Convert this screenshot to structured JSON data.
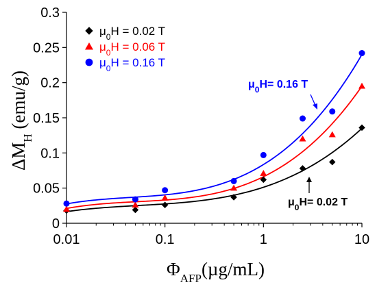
{
  "chart_data": {
    "type": "scatter",
    "x_scale": "log",
    "xlim": [
      0.01,
      10
    ],
    "ylim": [
      0,
      0.3
    ],
    "x_ticks": [
      "0.01",
      "0.1",
      "1",
      "10"
    ],
    "y_ticks": [
      "0",
      "0.05",
      "0.1",
      "0.15",
      "0.2",
      "0.25",
      "0.3"
    ],
    "xlabel": {
      "main": "Φ",
      "sub": "AFP",
      "rest": "(µg/mL)"
    },
    "ylabel": {
      "main": "ΔM",
      "sub": "H",
      "rest": " (emu/g)"
    },
    "legend_position": "top-left",
    "series": [
      {
        "name": "μ0H = 0.02 T",
        "legend_parts": [
          "μ",
          "0",
          "H = 0.02 T"
        ],
        "marker": "diamond",
        "color": "#000000",
        "x": [
          0.01,
          0.05,
          0.1,
          0.5,
          1,
          2.5,
          5,
          10
        ],
        "values": [
          0.018,
          0.019,
          0.026,
          0.037,
          0.062,
          0.078,
          0.087,
          0.136
        ],
        "fit": [
          0.0165,
          0.0275,
          0.0512,
          0.135
        ]
      },
      {
        "name": "μ0H = 0.06 T",
        "legend_parts": [
          "μ",
          "0",
          "H = 0.06 T"
        ],
        "marker": "triangle",
        "color": "#ff0000",
        "x": [
          0.01,
          0.05,
          0.1,
          0.5,
          1,
          2.5,
          5,
          10
        ],
        "values": [
          0.02,
          0.026,
          0.036,
          0.05,
          0.071,
          0.12,
          0.126,
          0.195
        ],
        "fit": [
          0.021,
          0.033,
          0.0662,
          0.195
        ]
      },
      {
        "name": "μ0H = 0.16 T",
        "legend_parts": [
          "μ",
          "0",
          "H = 0.16 T"
        ],
        "marker": "circle",
        "color": "#0000ff",
        "x": [
          0.01,
          0.05,
          0.1,
          0.5,
          1,
          2.5,
          5,
          10
        ],
        "values": [
          0.028,
          0.034,
          0.047,
          0.06,
          0.097,
          0.149,
          0.159,
          0.242
        ],
        "fit": [
          0.0275,
          0.0404,
          0.0835,
          0.24
        ]
      }
    ],
    "annotations": [
      {
        "parts": [
          "μ",
          "0",
          "H= 0.16 T"
        ],
        "color": "#0000ff",
        "arrow": "down",
        "at_x": 3,
        "at_y": 0.14
      },
      {
        "parts": [
          "μ",
          "0",
          "H= 0.02 T"
        ],
        "color": "#000000",
        "arrow": "up",
        "at_x": 3,
        "at_y": 0.05
      }
    ]
  }
}
